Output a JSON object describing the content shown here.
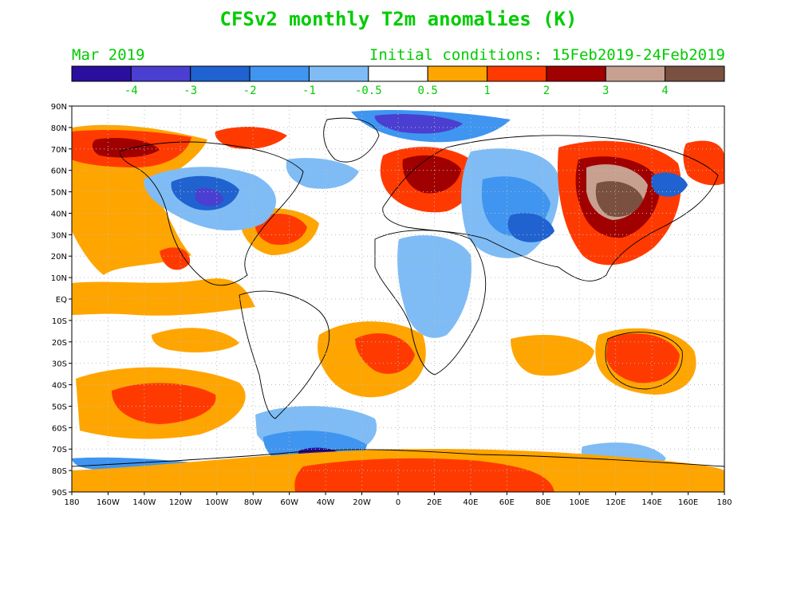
{
  "title": "CFSv2 monthly T2m anomalies (K)",
  "valid_month": "Mar 2019",
  "initial_conditions": "Initial conditions: 15Feb2019-24Feb2019",
  "colorbar": {
    "colors": [
      "#2a0f9e",
      "#4a3fd0",
      "#1f62d0",
      "#3f95f0",
      "#7fbcf5",
      "#ffffff",
      "#ffa500",
      "#ff3a00",
      "#a00000",
      "#c8a090",
      "#7a5040"
    ],
    "tick_labels": [
      "-4",
      "-3",
      "-2",
      "-1",
      "-0.5",
      "0.5",
      "1",
      "2",
      "3",
      "4"
    ]
  },
  "map": {
    "lat_labels": [
      "90N",
      "80N",
      "70N",
      "60N",
      "50N",
      "40N",
      "30N",
      "20N",
      "10N",
      "EQ",
      "10S",
      "20S",
      "30S",
      "40S",
      "50S",
      "60S",
      "70S",
      "80S",
      "90S"
    ],
    "lon_labels": [
      "180",
      "160W",
      "140W",
      "120W",
      "100W",
      "80W",
      "60W",
      "40W",
      "20W",
      "0",
      "20E",
      "40E",
      "60E",
      "80E",
      "100E",
      "120E",
      "140E",
      "160E",
      "180"
    ]
  },
  "anomaly_regions": [
    {
      "name": "alaska-warm",
      "color": "#ff3a00"
    },
    {
      "name": "north-america-cold",
      "color": "#1f62d0"
    },
    {
      "name": "scandinavia-warm",
      "color": "#a00000"
    },
    {
      "name": "siberia-warm",
      "color": "#7a5040"
    },
    {
      "name": "antarctica-warm",
      "color": "#ff3a00"
    },
    {
      "name": "australia-warm",
      "color": "#ff3a00"
    },
    {
      "name": "south-pacific-warm",
      "color": "#ff3a00"
    },
    {
      "name": "weddell-cold",
      "color": "#2a0f9e"
    }
  ]
}
